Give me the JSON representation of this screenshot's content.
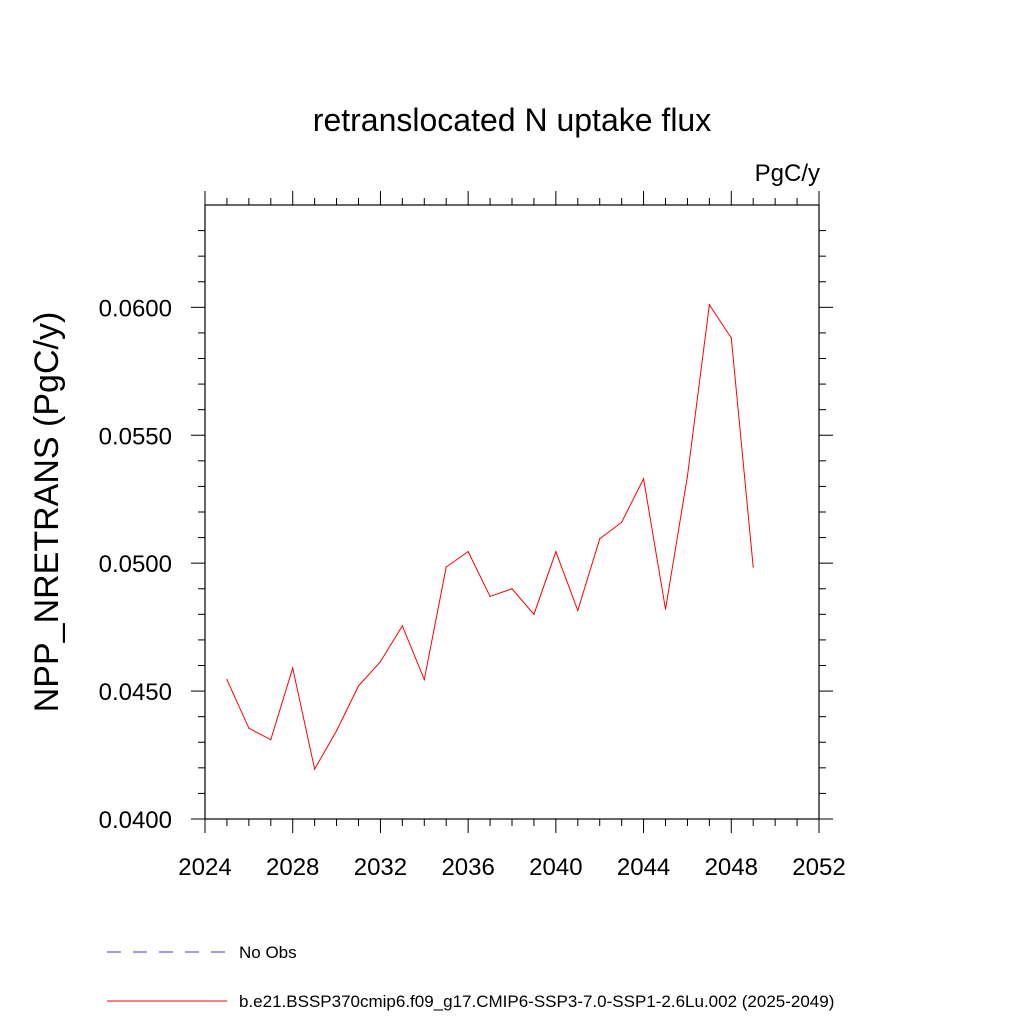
{
  "chart_data": {
    "type": "line",
    "title": "retranslocated N uptake flux",
    "units_label": "PgC/y",
    "ylabel": "NPP_NRETRANS  (PgC/y)",
    "xlabel": "",
    "xlim": [
      2024,
      2052
    ],
    "ylim": [
      0.04,
      0.064
    ],
    "x_ticks": [
      2024,
      2028,
      2032,
      2036,
      2040,
      2044,
      2048,
      2052
    ],
    "x_tick_labels": [
      "2024",
      "2028",
      "2032",
      "2036",
      "2040",
      "2044",
      "2048",
      "2052"
    ],
    "y_ticks": [
      0.04,
      0.045,
      0.05,
      0.055,
      0.06
    ],
    "y_tick_labels": [
      "0.0400",
      "0.0450",
      "0.0500",
      "0.0550",
      "0.0600"
    ],
    "grid": false,
    "legend_position": "bottom",
    "series": [
      {
        "name": "b.e21.BSSP370cmip6.f09_g17.CMIP6-SSP3-7.0-SSP1-2.6Lu.002 (2025-2049)",
        "color": "#ff0000",
        "style": "solid",
        "x": [
          2025,
          2026,
          2027,
          2028,
          2029,
          2030,
          2031,
          2032,
          2033,
          2034,
          2035,
          2036,
          2037,
          2038,
          2039,
          2040,
          2041,
          2042,
          2043,
          2044,
          2045,
          2046,
          2047,
          2048,
          2049
        ],
        "y": [
          0.04545,
          0.04355,
          0.0431,
          0.0459,
          0.04195,
          0.04345,
          0.0452,
          0.04615,
          0.04755,
          0.04545,
          0.04985,
          0.05045,
          0.0487,
          0.049,
          0.048,
          0.05045,
          0.04815,
          0.05095,
          0.0516,
          0.0533,
          0.0482,
          0.0534,
          0.0601,
          0.0588,
          0.04985
        ]
      }
    ],
    "legend": [
      {
        "label": "No Obs",
        "color": "#3c3cb4",
        "style": "dashed"
      },
      {
        "label": "b.e21.BSSP370cmip6.f09_g17.CMIP6-SSP3-7.0-SSP1-2.6Lu.002 (2025-2049)",
        "color": "#ff0000",
        "style": "solid"
      }
    ]
  }
}
